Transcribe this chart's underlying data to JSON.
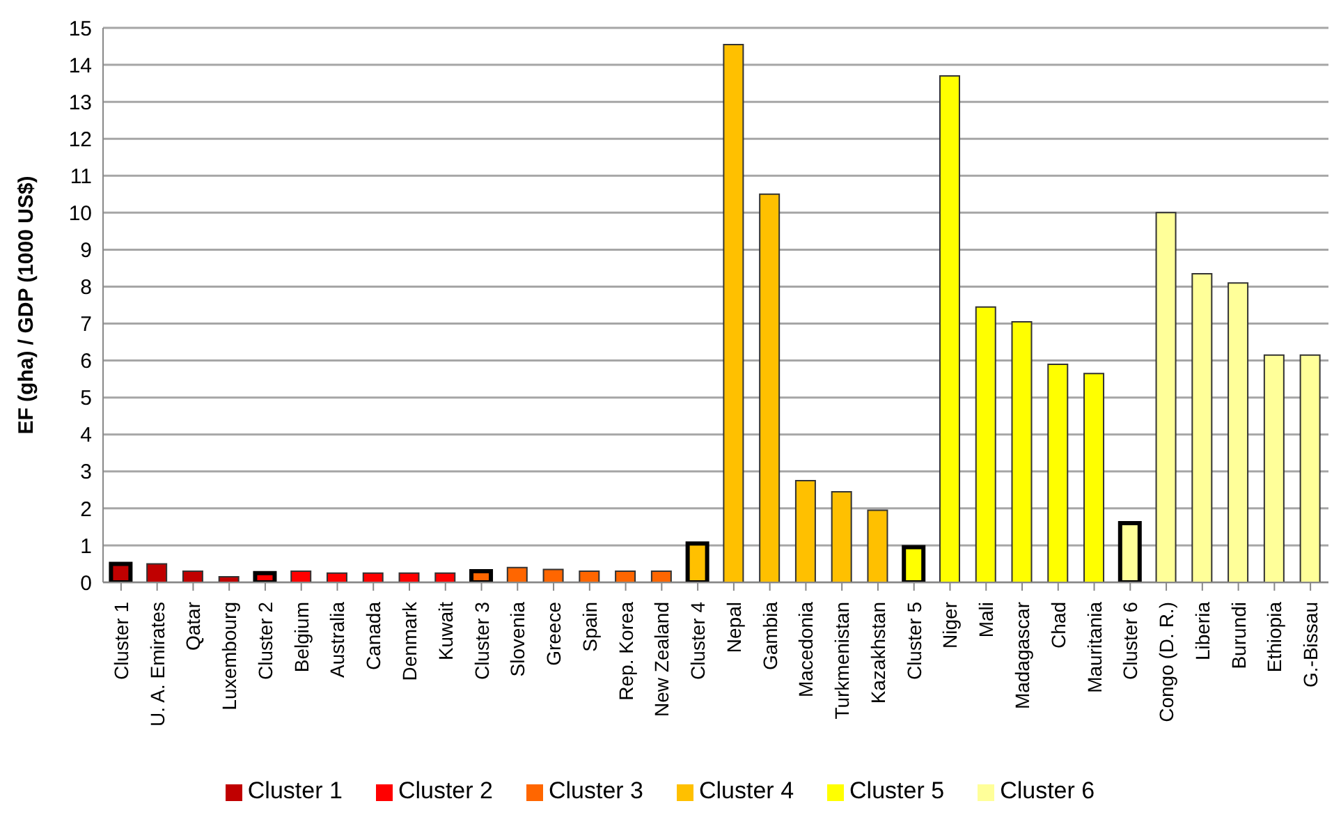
{
  "chart_data": {
    "type": "bar",
    "ylabel": "EF (gha) / GDP (1000  US$)",
    "stacked": true,
    "grid": "y",
    "legend": "bottom",
    "ylim": [
      0,
      15
    ],
    "yticks": [
      0,
      1,
      2,
      3,
      4,
      5,
      6,
      7,
      8,
      9,
      10,
      11,
      12,
      13,
      14,
      15
    ],
    "categories": [
      "Cluster 1",
      "U. A. Emirates",
      "Qatar",
      "Luxembourg",
      "Cluster 2",
      "Belgium",
      "Australia",
      "Canada",
      "Denmark",
      "Kuwait",
      "Cluster 3",
      "Slovenia",
      "Greece",
      "Spain",
      "Rep. Korea",
      "New Zealand",
      "Cluster 4",
      "Nepal",
      "Gambia",
      "Macedonia",
      "Turkmenistan",
      "Kazakhstan",
      "Cluster 5",
      "Niger",
      "Mali",
      "Madagascar",
      "Chad",
      "Mauritania",
      "Cluster 6",
      "Congo (D. R.)",
      "Liberia",
      "Burundi",
      "Ethiopia",
      "G.-Bissau"
    ],
    "series": [
      {
        "name": "Cluster 1",
        "color": "#c00000",
        "values": [
          0.5,
          0.5,
          0.3,
          0.15,
          null,
          null,
          null,
          null,
          null,
          null,
          null,
          null,
          null,
          null,
          null,
          null,
          null,
          null,
          null,
          null,
          null,
          null,
          null,
          null,
          null,
          null,
          null,
          null,
          null,
          null,
          null,
          null,
          null,
          null
        ]
      },
      {
        "name": "Cluster 2",
        "color": "#ff0000",
        "values": [
          null,
          null,
          null,
          null,
          0.25,
          0.3,
          0.25,
          0.25,
          0.25,
          0.25,
          null,
          null,
          null,
          null,
          null,
          null,
          null,
          null,
          null,
          null,
          null,
          null,
          null,
          null,
          null,
          null,
          null,
          null,
          null,
          null,
          null,
          null,
          null,
          null
        ]
      },
      {
        "name": "Cluster 3",
        "color": "#ff6600",
        "values": [
          null,
          null,
          null,
          null,
          null,
          null,
          null,
          null,
          null,
          null,
          0.3,
          0.4,
          0.35,
          0.3,
          0.3,
          0.3,
          null,
          null,
          null,
          null,
          null,
          null,
          null,
          null,
          null,
          null,
          null,
          null,
          null,
          null,
          null,
          null,
          null,
          null
        ]
      },
      {
        "name": "Cluster 4",
        "color": "#ffc000",
        "values": [
          null,
          null,
          null,
          null,
          null,
          null,
          null,
          null,
          null,
          null,
          null,
          null,
          null,
          null,
          null,
          null,
          1.05,
          14.55,
          10.5,
          2.75,
          2.45,
          1.95,
          null,
          null,
          null,
          null,
          null,
          null,
          null,
          null,
          null,
          null,
          null,
          null
        ]
      },
      {
        "name": "Cluster 5",
        "color": "#ffff00",
        "values": [
          null,
          null,
          null,
          null,
          null,
          null,
          null,
          null,
          null,
          null,
          null,
          null,
          null,
          null,
          null,
          null,
          null,
          null,
          null,
          null,
          null,
          null,
          0.95,
          13.7,
          7.45,
          7.05,
          5.9,
          5.65,
          null,
          null,
          null,
          null,
          null,
          null
        ]
      },
      {
        "name": "Cluster 6",
        "color": "#ffff99",
        "values": [
          null,
          null,
          null,
          null,
          null,
          null,
          null,
          null,
          null,
          null,
          null,
          null,
          null,
          null,
          null,
          null,
          null,
          null,
          null,
          null,
          null,
          null,
          null,
          null,
          null,
          null,
          null,
          null,
          1.6,
          10.0,
          8.35,
          8.1,
          6.15,
          6.15
        ]
      }
    ]
  }
}
